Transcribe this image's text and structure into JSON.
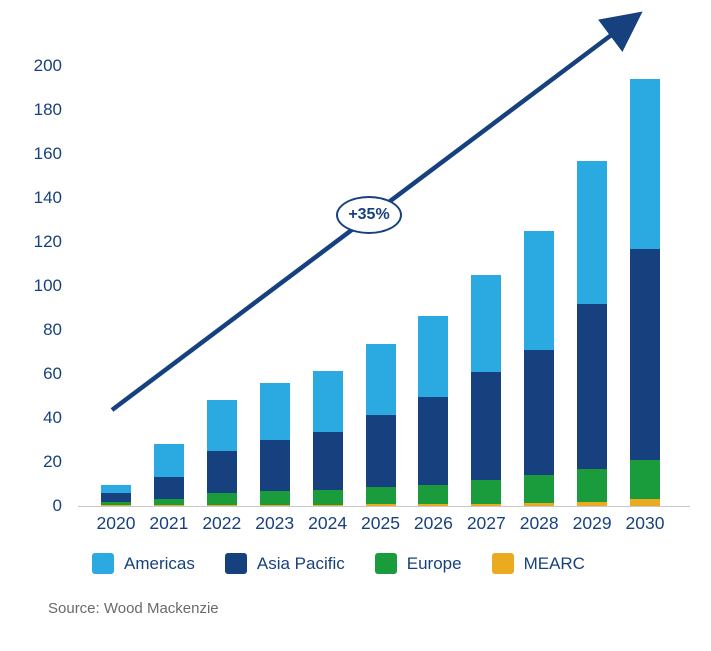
{
  "chart_data": {
    "type": "bar",
    "stacked": true,
    "title": "",
    "xlabel": "",
    "ylabel": "",
    "categories": [
      "2020",
      "2021",
      "2022",
      "2023",
      "2024",
      "2025",
      "2026",
      "2027",
      "2028",
      "2029",
      "2030"
    ],
    "stack_order_bottom_to_top": [
      "MEARC",
      "Europe",
      "Asia Pacific",
      "Americas"
    ],
    "series": [
      {
        "name": "Americas",
        "color": "#2BAAE2",
        "values": [
          3.5,
          15,
          23,
          26,
          28,
          32,
          37,
          44,
          54,
          65,
          77
        ]
      },
      {
        "name": "Asia Pacific",
        "color": "#17417E",
        "values": [
          4,
          10,
          19,
          23,
          26,
          33,
          40,
          49,
          57,
          75,
          96
        ]
      },
      {
        "name": "Europe",
        "color": "#1B9C3C",
        "values": [
          1.5,
          2.5,
          5.5,
          6.5,
          7,
          7.5,
          8.5,
          11,
          12.5,
          15,
          18
        ]
      },
      {
        "name": "MEARC",
        "color": "#EAAB21",
        "values": [
          0.5,
          0.5,
          0.5,
          0.5,
          0.5,
          1,
          1,
          1,
          1.5,
          2,
          3
        ]
      }
    ],
    "ylim": [
      0,
      200
    ],
    "yticks": [
      0,
      20,
      40,
      60,
      80,
      100,
      120,
      140,
      160,
      180,
      200
    ],
    "grid": false,
    "legend_position": "bottom",
    "annotation": {
      "label": "+35%"
    }
  },
  "source": "Source: Wood Mackenzie",
  "colors": {
    "text": "#17417E",
    "arrow": "#17417E",
    "axis_line": "#c8c8c8",
    "source_text": "#6a6a6a",
    "badge_background": "#ffffff"
  }
}
